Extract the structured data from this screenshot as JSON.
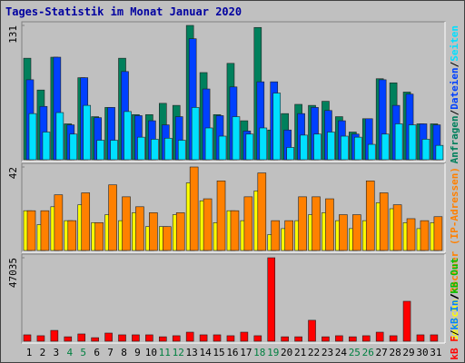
{
  "title": "Tages-Statistik im Monat Januar 2020",
  "legend_separator": "/",
  "chart_data": [
    {
      "type": "bar",
      "ylim": [
        0,
        131
      ],
      "yticks": [
        131
      ],
      "series": [
        {
          "name": "Anfragen",
          "color": "#00805c",
          "values": [
            99,
            68,
            100,
            35,
            80,
            42,
            51,
            99,
            44,
            44,
            55,
            53,
            131,
            85,
            44,
            94,
            38,
            129,
            29,
            45,
            54,
            53,
            57,
            42,
            27,
            40,
            79,
            75,
            66,
            35,
            35
          ]
        },
        {
          "name": "Dateien",
          "color": "#0040ff",
          "values": [
            78,
            52,
            100,
            34,
            80,
            41,
            51,
            86,
            43,
            38,
            34,
            42,
            118,
            69,
            43,
            71,
            28,
            76,
            76,
            29,
            45,
            51,
            48,
            38,
            25,
            40,
            78,
            53,
            64,
            35,
            34
          ]
        },
        {
          "name": "Seiten",
          "color": "#00e0ff",
          "values": [
            45,
            27,
            46,
            25,
            53,
            19,
            19,
            47,
            22,
            20,
            21,
            19,
            51,
            31,
            23,
            42,
            25,
            31,
            65,
            12,
            24,
            25,
            27,
            23,
            22,
            15,
            25,
            35,
            34,
            20,
            14
          ]
        }
      ]
    },
    {
      "type": "bar",
      "ylim": [
        0,
        42
      ],
      "yticks": [
        42
      ],
      "series": [
        {
          "name": "Besuche",
          "color": "#ffff00",
          "values": [
            20,
            13,
            22,
            15,
            23,
            14,
            18,
            15,
            19,
            12,
            12,
            18,
            34,
            25,
            14,
            20,
            15,
            30,
            8,
            11,
            15,
            18,
            19,
            15,
            11,
            15,
            24,
            21,
            14,
            11,
            14
          ]
        },
        {
          "name": "Rechner (IP-Adressen)",
          "color": "#ff8000",
          "values": [
            20,
            20,
            28,
            15,
            29,
            14,
            33,
            27,
            22,
            19,
            12,
            19,
            42,
            26,
            35,
            20,
            27,
            39,
            15,
            15,
            27,
            27,
            26,
            18,
            18,
            35,
            29,
            23,
            16,
            15,
            17
          ]
        }
      ]
    },
    {
      "type": "bar",
      "ylim": [
        0,
        47035
      ],
      "yticks": [
        47035
      ],
      "categories": [
        "1",
        "2",
        "3",
        "4",
        "5",
        "6",
        "7",
        "8",
        "9",
        "10",
        "11",
        "12",
        "13",
        "14",
        "15",
        "16",
        "17",
        "18",
        "19",
        "20",
        "21",
        "22",
        "23",
        "24",
        "25",
        "26",
        "27",
        "28",
        "29",
        "30",
        "31"
      ],
      "category_colors": [
        "#000000",
        "#000000",
        "#000000",
        "#008040",
        "#008040",
        "#000000",
        "#000000",
        "#000000",
        "#000000",
        "#000000",
        "#008040",
        "#008040",
        "#000000",
        "#000000",
        "#000000",
        "#000000",
        "#000000",
        "#008040",
        "#008040",
        "#000000",
        "#000000",
        "#000000",
        "#000000",
        "#000000",
        "#008040",
        "#008040",
        "#000000",
        "#000000",
        "#000000",
        "#000000",
        "#000000"
      ],
      "series": [
        {
          "name": "kB F",
          "color": "#ff0000",
          "values": [
            3600,
            3100,
            6100,
            2500,
            4100,
            2000,
            4600,
            3600,
            3600,
            3600,
            2500,
            3100,
            5100,
            3600,
            3600,
            3100,
            5100,
            3100,
            47035,
            2500,
            2500,
            11800,
            2500,
            3100,
            2500,
            3100,
            5100,
            3100,
            22500,
            3600,
            3600
          ]
        }
      ],
      "legend_only": [
        {
          "name": "kB In",
          "color": "#0080ff"
        },
        {
          "name": "kB Out",
          "color": "#00c000"
        }
      ]
    }
  ]
}
